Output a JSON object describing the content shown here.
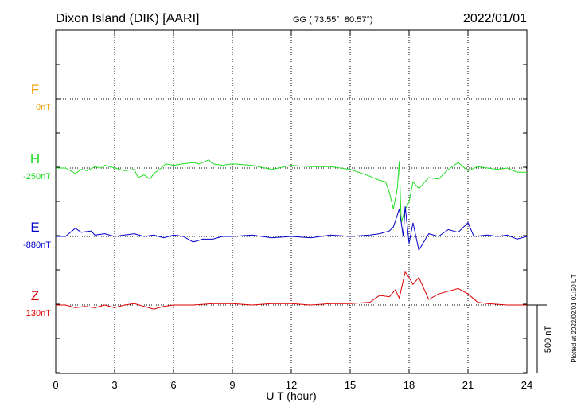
{
  "header": {
    "station": "Dixon Island (DIK)  [AARI]",
    "coords": "GG ( 73.55°,  80.57°)",
    "date": "2022/01/01"
  },
  "side_note": "Plotted at 2022/02/01 01:50 UT",
  "chart_data": {
    "type": "line",
    "xlabel": "U T (hour)",
    "xlim": [
      0,
      24
    ],
    "x_ticks": [
      "0",
      "3",
      "6",
      "9",
      "12",
      "15",
      "18",
      "21",
      "24"
    ],
    "scale_bar_label": "500 nT",
    "colors": {
      "F": "#f0a000",
      "H": "#22dd22",
      "E": "#0000cc",
      "Z": "#dd0000"
    },
    "series": [
      {
        "name": "F",
        "base_label": "0nT",
        "values": []
      },
      {
        "name": "H",
        "base_label": "-250nT",
        "values": [
          [
            0,
            0
          ],
          [
            0.5,
            0
          ],
          [
            1,
            -40
          ],
          [
            1.3,
            -10
          ],
          [
            1.6,
            -20
          ],
          [
            2,
            10
          ],
          [
            2.3,
            0
          ],
          [
            2.5,
            20
          ],
          [
            3,
            0
          ],
          [
            3.5,
            -20
          ],
          [
            4,
            -10
          ],
          [
            4.2,
            -70
          ],
          [
            4.5,
            -50
          ],
          [
            4.8,
            -80
          ],
          [
            5,
            -40
          ],
          [
            5.3,
            -10
          ],
          [
            5.6,
            30
          ],
          [
            6,
            20
          ],
          [
            6.5,
            30
          ],
          [
            7,
            40
          ],
          [
            7.3,
            30
          ],
          [
            7.8,
            60
          ],
          [
            8,
            30
          ],
          [
            8.5,
            20
          ],
          [
            9,
            30
          ],
          [
            10,
            20
          ],
          [
            11,
            -10
          ],
          [
            12,
            20
          ],
          [
            13,
            10
          ],
          [
            14,
            10
          ],
          [
            15,
            -10
          ],
          [
            16,
            -60
          ],
          [
            16.5,
            -90
          ],
          [
            16.8,
            -100
          ],
          [
            17,
            -180
          ],
          [
            17.2,
            -300
          ],
          [
            17.4,
            -150
          ],
          [
            17.5,
            50
          ],
          [
            17.6,
            -400
          ],
          [
            17.8,
            -300
          ],
          [
            18,
            -250
          ],
          [
            18.2,
            -100
          ],
          [
            18.5,
            -150
          ],
          [
            19,
            -70
          ],
          [
            19.5,
            -80
          ],
          [
            20,
            -10
          ],
          [
            20.5,
            40
          ],
          [
            21,
            -20
          ],
          [
            21.5,
            10
          ],
          [
            22,
            0
          ],
          [
            22.5,
            -10
          ],
          [
            23,
            0
          ],
          [
            23.5,
            -30
          ],
          [
            24,
            -30
          ]
        ]
      },
      {
        "name": "E",
        "base_label": "-880nT",
        "values": [
          [
            0,
            0
          ],
          [
            0.5,
            0
          ],
          [
            1,
            60
          ],
          [
            1.3,
            30
          ],
          [
            1.8,
            40
          ],
          [
            2,
            10
          ],
          [
            2.5,
            20
          ],
          [
            3,
            0
          ],
          [
            3.5,
            10
          ],
          [
            4,
            20
          ],
          [
            4.5,
            0
          ],
          [
            5,
            10
          ],
          [
            5.5,
            -10
          ],
          [
            6,
            10
          ],
          [
            6.5,
            0
          ],
          [
            7,
            -40
          ],
          [
            7.5,
            -20
          ],
          [
            8,
            -20
          ],
          [
            8.5,
            0
          ],
          [
            9,
            0
          ],
          [
            10,
            10
          ],
          [
            11,
            -10
          ],
          [
            12,
            0
          ],
          [
            13,
            -10
          ],
          [
            14,
            10
          ],
          [
            15,
            0
          ],
          [
            16,
            10
          ],
          [
            16.5,
            20
          ],
          [
            17,
            40
          ],
          [
            17.2,
            70
          ],
          [
            17.5,
            200
          ],
          [
            17.7,
            0
          ],
          [
            17.8,
            220
          ],
          [
            18,
            -50
          ],
          [
            18.2,
            100
          ],
          [
            18.5,
            -100
          ],
          [
            19,
            20
          ],
          [
            19.5,
            0
          ],
          [
            20,
            50
          ],
          [
            20.5,
            30
          ],
          [
            21,
            100
          ],
          [
            21.3,
            0
          ],
          [
            22,
            10
          ],
          [
            22.5,
            0
          ],
          [
            23,
            10
          ],
          [
            23.5,
            -20
          ],
          [
            24,
            0
          ]
        ]
      },
      {
        "name": "Z",
        "base_label": "130nT",
        "values": [
          [
            0,
            0
          ],
          [
            0.5,
            0
          ],
          [
            1,
            -20
          ],
          [
            1.5,
            -10
          ],
          [
            2,
            -20
          ],
          [
            2.5,
            0
          ],
          [
            3,
            -20
          ],
          [
            3.5,
            0
          ],
          [
            4,
            10
          ],
          [
            4.5,
            -10
          ],
          [
            5,
            -30
          ],
          [
            5.5,
            -10
          ],
          [
            6,
            0
          ],
          [
            7,
            0
          ],
          [
            8,
            10
          ],
          [
            9,
            10
          ],
          [
            10,
            0
          ],
          [
            11,
            10
          ],
          [
            12,
            10
          ],
          [
            13,
            0
          ],
          [
            14,
            10
          ],
          [
            15,
            10
          ],
          [
            16,
            20
          ],
          [
            16.5,
            70
          ],
          [
            17,
            60
          ],
          [
            17.3,
            110
          ],
          [
            17.5,
            50
          ],
          [
            17.8,
            240
          ],
          [
            18,
            200
          ],
          [
            18.2,
            150
          ],
          [
            18.5,
            200
          ],
          [
            19,
            40
          ],
          [
            19.5,
            80
          ],
          [
            20,
            100
          ],
          [
            20.5,
            120
          ],
          [
            21,
            80
          ],
          [
            21.5,
            20
          ],
          [
            22,
            10
          ],
          [
            23,
            0
          ],
          [
            24,
            0
          ]
        ]
      }
    ]
  }
}
